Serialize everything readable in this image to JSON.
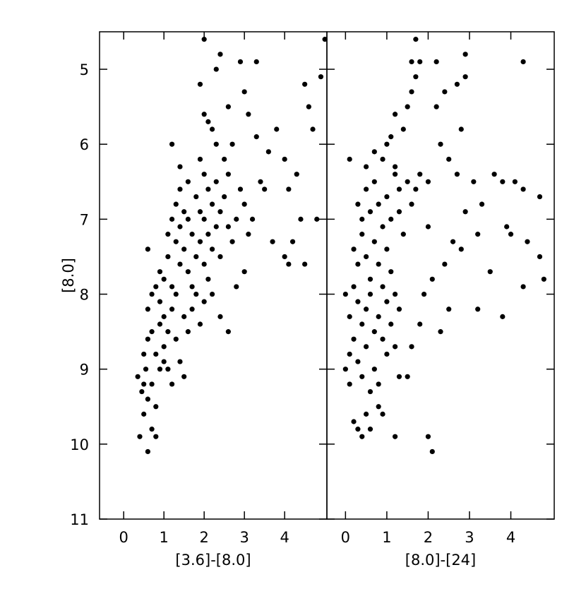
{
  "chart_data": [
    {
      "type": "scatter",
      "xlabel": "[3.6]-[8.0]",
      "ylabel": "[8.0]",
      "color": "#000000",
      "xlim": [
        -0.6,
        5.05
      ],
      "xticks": [
        0,
        1,
        2,
        3,
        4
      ],
      "ylim": [
        11,
        4.5
      ],
      "yticks": [
        5,
        6,
        7,
        8,
        9,
        10,
        11
      ],
      "ytick_labels": true,
      "x": [
        0.4,
        0.5,
        0.6,
        0.7,
        0.8,
        0.35,
        0.45,
        0.55,
        0.6,
        0.7,
        0.8,
        0.9,
        0.5,
        0.6,
        0.7,
        0.8,
        0.9,
        1.0,
        1.1,
        1.2,
        0.6,
        0.7,
        0.8,
        0.9,
        1.0,
        1.1,
        1.2,
        1.3,
        1.4,
        1.5,
        0.6,
        0.9,
        1.0,
        1.1,
        1.2,
        1.3,
        1.4,
        1.5,
        1.6,
        1.7,
        1.1,
        1.2,
        1.3,
        1.4,
        1.5,
        1.6,
        1.7,
        1.8,
        1.9,
        2.0,
        1.3,
        1.4,
        1.5,
        1.6,
        1.7,
        1.8,
        1.9,
        2.0,
        2.1,
        2.2,
        1.2,
        1.4,
        1.6,
        1.8,
        1.9,
        2.0,
        2.1,
        2.2,
        2.3,
        2.4,
        1.9,
        2.0,
        2.1,
        2.2,
        2.3,
        2.4,
        2.5,
        2.6,
        2.7,
        2.8,
        2.0,
        2.1,
        2.2,
        2.3,
        2.5,
        2.6,
        2.7,
        2.9,
        3.0,
        3.1,
        1.9,
        2.0,
        2.3,
        2.4,
        2.6,
        2.9,
        3.0,
        3.1,
        3.3,
        3.5,
        3.0,
        2.8,
        2.6,
        2.4,
        3.2,
        3.4,
        3.7,
        3.8,
        4.0,
        4.1,
        4.0,
        4.1,
        4.5,
        4.3,
        4.4,
        4.5,
        4.6,
        4.7,
        4.8,
        4.9,
        5.0,
        4.2,
        3.6,
        3.3,
        1.0,
        0.5
      ],
      "y": [
        9.9,
        9.6,
        10.1,
        9.8,
        9.9,
        9.1,
        9.3,
        9.0,
        9.4,
        9.2,
        9.5,
        9.0,
        8.8,
        8.6,
        8.5,
        8.8,
        8.4,
        8.7,
        9.0,
        9.2,
        8.2,
        8.0,
        7.9,
        8.1,
        8.3,
        8.5,
        8.2,
        8.6,
        8.9,
        9.1,
        7.4,
        7.7,
        7.8,
        7.5,
        7.9,
        8.0,
        7.6,
        8.3,
        8.5,
        8.2,
        7.2,
        7.0,
        7.3,
        7.1,
        7.4,
        7.7,
        7.9,
        8.0,
        8.4,
        8.1,
        6.8,
        6.6,
        6.9,
        7.0,
        7.2,
        7.5,
        7.3,
        7.6,
        7.8,
        8.0,
        6.0,
        6.3,
        6.5,
        6.7,
        6.9,
        7.0,
        7.2,
        7.4,
        7.1,
        7.5,
        6.2,
        6.4,
        6.6,
        6.8,
        6.5,
        6.9,
        6.7,
        7.1,
        7.3,
        7.0,
        5.6,
        5.7,
        5.8,
        6.0,
        6.2,
        6.4,
        6.0,
        6.6,
        6.8,
        7.2,
        5.2,
        4.6,
        5.0,
        4.8,
        5.5,
        4.9,
        5.3,
        5.6,
        5.9,
        6.6,
        7.7,
        7.9,
        8.5,
        8.3,
        7.0,
        6.5,
        7.3,
        5.8,
        6.2,
        6.6,
        7.5,
        7.6,
        7.6,
        6.4,
        7.0,
        5.2,
        5.5,
        5.8,
        7.0,
        5.1,
        4.6,
        7.3,
        6.1,
        4.9,
        8.9,
        9.2
      ]
    },
    {
      "type": "scatter",
      "xlabel": "[8.0]-[24]",
      "color": "#000000",
      "xlim": [
        -0.45,
        5.05
      ],
      "xticks": [
        0,
        1,
        2,
        3,
        4
      ],
      "ylim": [
        11,
        4.5
      ],
      "yticks": [
        5,
        6,
        7,
        8,
        9,
        10,
        11
      ],
      "ytick_labels": false,
      "x": [
        0.1,
        0.2,
        0.3,
        0.4,
        0.5,
        0.6,
        0.8,
        0.9,
        1.2,
        2.1,
        2.0,
        0.0,
        0.1,
        0.2,
        0.3,
        0.4,
        0.5,
        0.6,
        0.7,
        0.8,
        1.0,
        0.0,
        0.1,
        0.2,
        0.3,
        0.4,
        0.5,
        0.6,
        0.7,
        0.8,
        0.9,
        1.1,
        1.2,
        1.3,
        0.2,
        0.3,
        0.4,
        0.5,
        0.6,
        0.7,
        0.8,
        0.9,
        1.0,
        1.1,
        1.2,
        0.1,
        0.3,
        0.4,
        0.5,
        0.6,
        0.7,
        0.8,
        0.9,
        1.0,
        1.1,
        1.2,
        1.3,
        1.4,
        0.5,
        0.7,
        0.9,
        1.0,
        1.1,
        1.2,
        1.3,
        1.5,
        1.6,
        1.7,
        1.8,
        2.0,
        1.2,
        1.4,
        1.5,
        1.6,
        1.7,
        1.6,
        1.7,
        1.8,
        2.2,
        2.4,
        2.7,
        2.9,
        2.9,
        2.2,
        2.3,
        2.5,
        2.8,
        2.7,
        2.9,
        3.1,
        3.3,
        3.6,
        3.8,
        4.1,
        4.3,
        4.7,
        4.3,
        3.9,
        3.2,
        2.6,
        2.4,
        2.1,
        1.9,
        1.8,
        1.6,
        1.5,
        2.3,
        2.5,
        3.2,
        3.8,
        4.3,
        4.4,
        4.7,
        4.8,
        4.0,
        3.5,
        2.8,
        2.0,
        1.3,
        1.0
      ],
      "y": [
        9.2,
        9.7,
        9.8,
        9.9,
        9.6,
        9.8,
        9.5,
        9.6,
        9.9,
        10.1,
        9.9,
        9.0,
        8.8,
        8.6,
        8.9,
        9.1,
        8.7,
        9.3,
        9.0,
        9.2,
        8.8,
        8.0,
        8.3,
        7.9,
        8.1,
        8.4,
        8.2,
        8.0,
        8.5,
        8.3,
        8.6,
        8.4,
        8.7,
        9.1,
        7.4,
        7.6,
        7.2,
        7.5,
        7.8,
        7.3,
        7.6,
        7.9,
        7.4,
        7.7,
        8.0,
        6.2,
        6.8,
        7.0,
        6.6,
        6.9,
        6.5,
        6.8,
        7.1,
        6.7,
        7.0,
        6.4,
        6.9,
        7.2,
        6.3,
        6.1,
        6.2,
        6.0,
        5.9,
        6.3,
        6.6,
        6.5,
        6.8,
        6.6,
        6.4,
        6.5,
        5.6,
        5.8,
        5.5,
        5.3,
        5.1,
        4.9,
        4.6,
        4.9,
        4.9,
        5.3,
        5.2,
        4.8,
        5.1,
        5.5,
        6.0,
        6.2,
        5.8,
        6.4,
        6.9,
        6.5,
        6.8,
        6.4,
        6.5,
        6.5,
        6.6,
        6.7,
        4.9,
        7.1,
        7.2,
        7.3,
        7.6,
        7.8,
        8.0,
        8.4,
        8.7,
        9.1,
        8.5,
        8.2,
        8.2,
        8.3,
        7.9,
        7.3,
        7.5,
        7.8,
        7.2,
        7.7,
        7.4,
        7.1,
        8.2,
        8.1
      ]
    }
  ]
}
